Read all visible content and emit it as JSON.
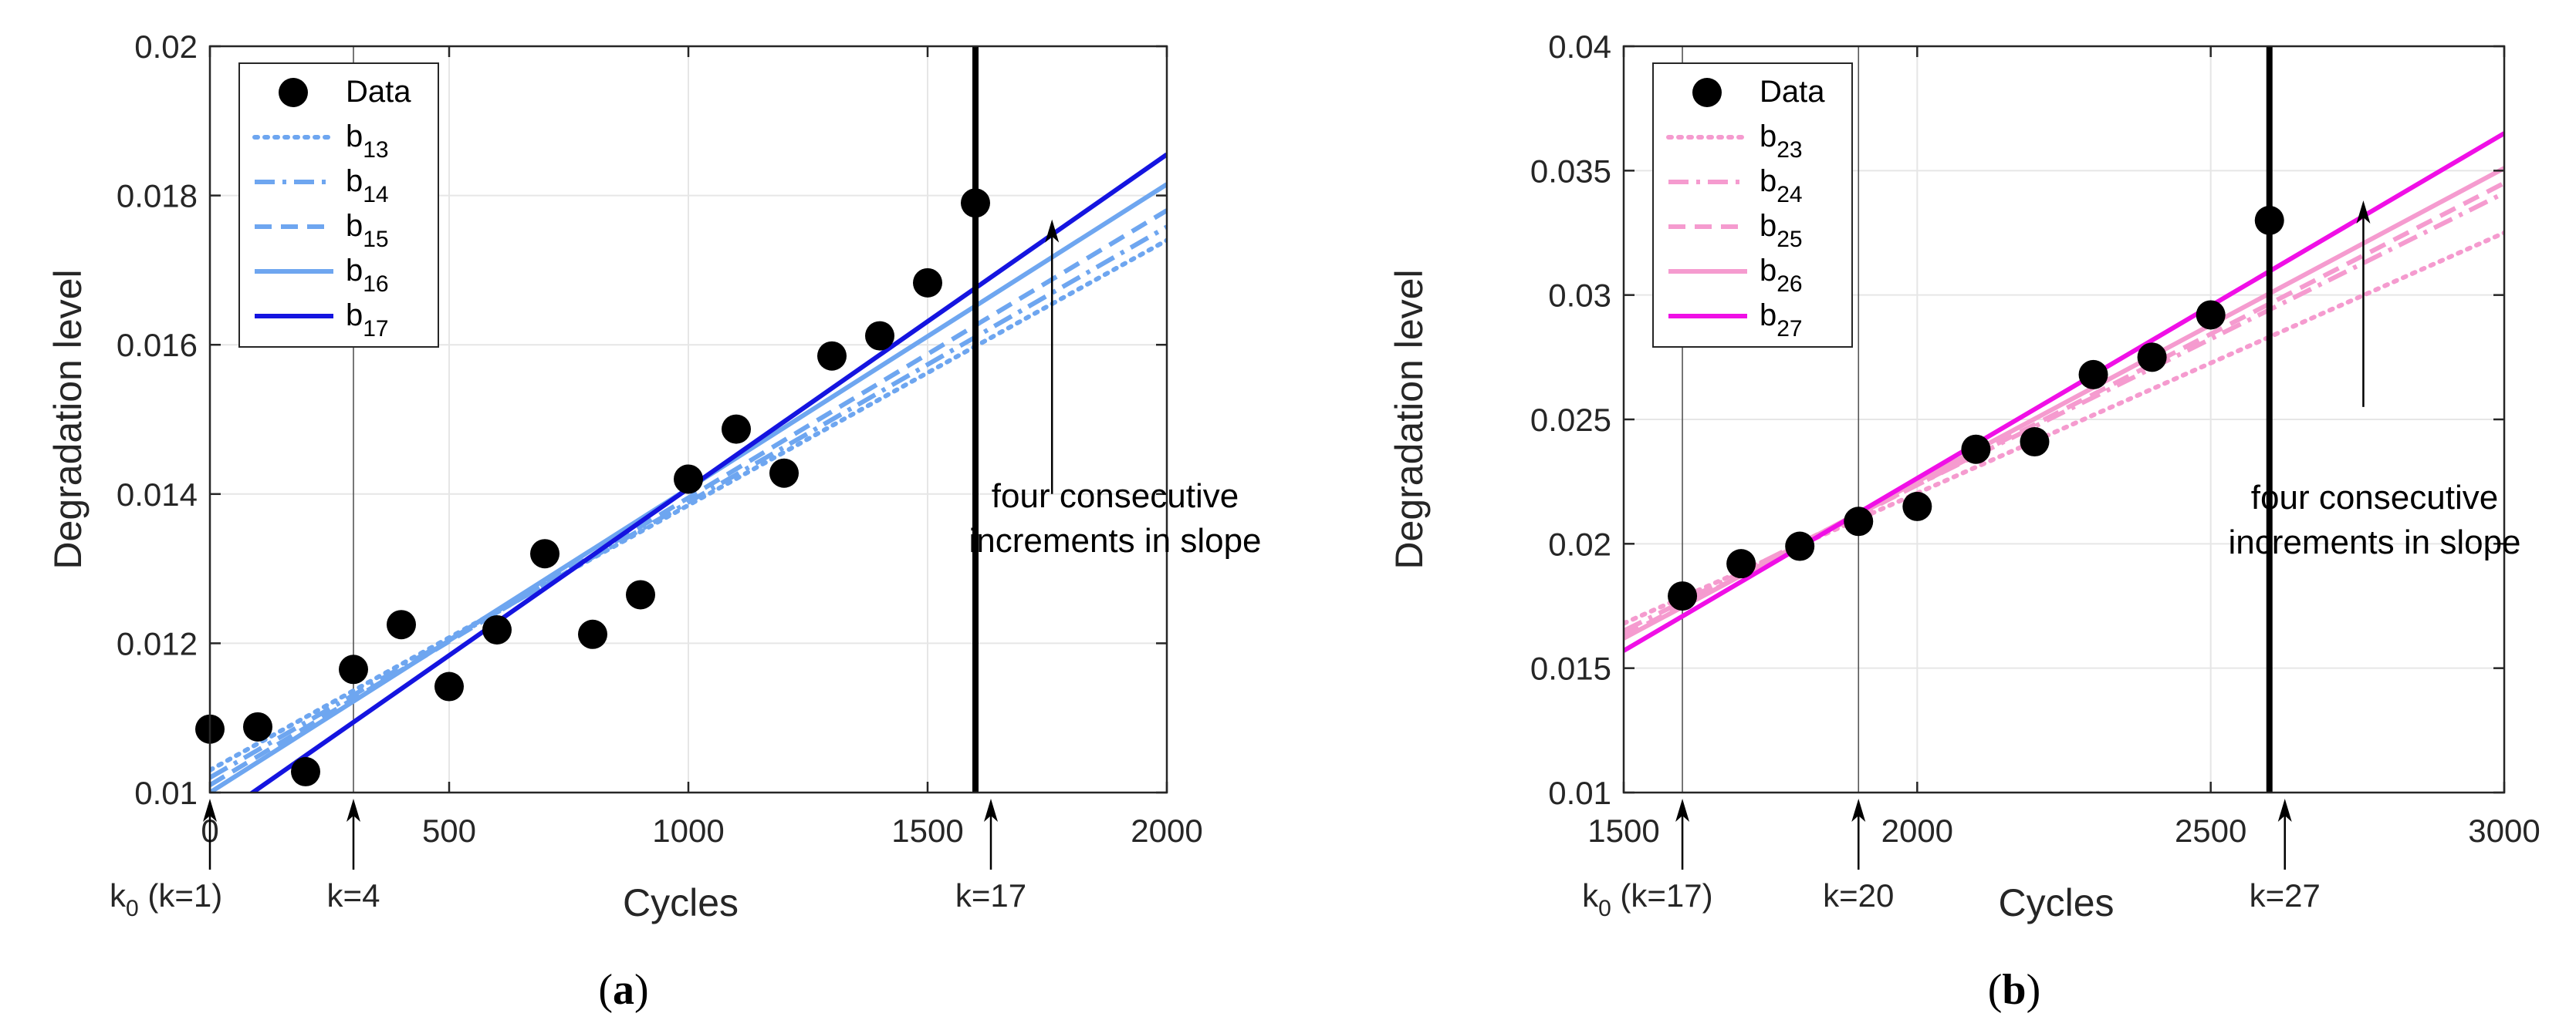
{
  "figure_labels": {
    "a": {
      "open": "(",
      "letter": "a",
      "close": ")"
    },
    "b": {
      "open": "(",
      "letter": "b",
      "close": ")"
    }
  },
  "colors": {
    "blue_light": "#6ea6f0",
    "blue_dark": "#1414e0",
    "pink_light": "#f59bcf",
    "pink_dark": "#f00fe6",
    "data": "#000000",
    "grid": "#e6e6e6"
  },
  "chart_data": [
    {
      "type": "line",
      "panel": "a",
      "title": "",
      "xlabel": "Cycles",
      "ylabel": "Degradation level",
      "xlim": [
        0,
        2000
      ],
      "ylim": [
        0.01,
        0.02
      ],
      "grid": true,
      "legend_position": "top-left",
      "x_ticks": [
        0,
        500,
        1000,
        1500,
        2000
      ],
      "x_tick_labels": [
        "0",
        "500",
        "1000",
        "1500",
        "2000"
      ],
      "y_ticks": [
        0.01,
        0.012,
        0.014,
        0.016,
        0.018,
        0.02
      ],
      "y_tick_labels": [
        "0.01",
        "0.012",
        "0.014",
        "0.016",
        "0.018",
        "0.02"
      ],
      "data_series": {
        "name": "Data",
        "x": [
          0,
          100,
          200,
          300,
          400,
          500,
          600,
          700,
          800,
          900,
          1000,
          1100,
          1200,
          1300,
          1400,
          1500,
          1600
        ],
        "y": [
          0.01085,
          0.01088,
          0.01028,
          0.01165,
          0.01225,
          0.01142,
          0.01218,
          0.0132,
          0.01212,
          0.01265,
          0.0142,
          0.01487,
          0.01428,
          0.01585,
          0.01612,
          0.01683,
          0.0179
        ]
      },
      "fit_lines": [
        {
          "base": "b",
          "sub": "13",
          "style": "dotted",
          "color": "#6ea6f0",
          "x": [
            0,
            2000
          ],
          "y": [
            0.0103,
            0.0174
          ]
        },
        {
          "base": "b",
          "sub": "14",
          "style": "dashdot",
          "color": "#6ea6f0",
          "x": [
            0,
            2000
          ],
          "y": [
            0.0102,
            0.01758
          ]
        },
        {
          "base": "b",
          "sub": "15",
          "style": "dashed",
          "color": "#6ea6f0",
          "x": [
            0,
            2000
          ],
          "y": [
            0.0101,
            0.0178
          ]
        },
        {
          "base": "b",
          "sub": "16",
          "style": "solid",
          "color": "#6ea6f0",
          "x": [
            0,
            2000
          ],
          "y": [
            0.01,
            0.01815
          ]
        },
        {
          "base": "b",
          "sub": "17",
          "style": "solid",
          "color": "#1414e0",
          "x": [
            0,
            2000
          ],
          "y": [
            0.0096,
            0.01855
          ]
        }
      ],
      "markers": [
        {
          "x": 0,
          "label": "k",
          "sub": "0",
          "suffix": " (k=1)",
          "thick": false,
          "arrow": true
        },
        {
          "x": 300,
          "label": "k=4",
          "sub": "",
          "suffix": "",
          "thick": false,
          "arrow": true
        },
        {
          "x": 1600,
          "label": "k=17",
          "sub": "",
          "suffix": "",
          "thick": true,
          "arrow": true
        }
      ],
      "annotation": {
        "lines": [
          "four consecutive",
          "increments in slope"
        ],
        "arrow_x": 1760,
        "arrow_y_from": 0.014,
        "arrow_y_to": 0.01768
      }
    },
    {
      "type": "line",
      "panel": "b",
      "title": "",
      "xlabel": "Cycles",
      "ylabel": "Degradation level",
      "xlim": [
        1500,
        3000
      ],
      "ylim": [
        0.01,
        0.04
      ],
      "grid": true,
      "legend_position": "top-left",
      "x_ticks": [
        1500,
        2000,
        2500,
        3000
      ],
      "x_tick_labels": [
        "1500",
        "2000",
        "2500",
        "3000"
      ],
      "y_ticks": [
        0.01,
        0.015,
        0.02,
        0.025,
        0.03,
        0.035,
        0.04
      ],
      "y_tick_labels": [
        "0.01",
        "0.015",
        "0.02",
        "0.025",
        "0.03",
        "0.035",
        "0.04"
      ],
      "data_series": {
        "name": "Data",
        "x": [
          1600,
          1700,
          1800,
          1900,
          2000,
          2100,
          2200,
          2300,
          2400,
          2500,
          2600
        ],
        "y": [
          0.0179,
          0.0192,
          0.0199,
          0.0209,
          0.0215,
          0.0238,
          0.0241,
          0.0268,
          0.0275,
          0.0292,
          0.033
        ]
      },
      "fit_lines": [
        {
          "base": "b",
          "sub": "23",
          "style": "dotted",
          "color": "#f59bcf",
          "x": [
            1500,
            3000
          ],
          "y": [
            0.0168,
            0.0325
          ]
        },
        {
          "base": "b",
          "sub": "24",
          "style": "dashdot",
          "color": "#f59bcf",
          "x": [
            1500,
            3000
          ],
          "y": [
            0.0165,
            0.0341
          ]
        },
        {
          "base": "b",
          "sub": "25",
          "style": "dashed",
          "color": "#f59bcf",
          "x": [
            1500,
            3000
          ],
          "y": [
            0.0163,
            0.0345
          ]
        },
        {
          "base": "b",
          "sub": "26",
          "style": "solid",
          "color": "#f59bcf",
          "x": [
            1500,
            3000
          ],
          "y": [
            0.0162,
            0.0351
          ]
        },
        {
          "base": "b",
          "sub": "27",
          "style": "solid",
          "color": "#f00fe6",
          "x": [
            1500,
            3000
          ],
          "y": [
            0.0157,
            0.0365
          ]
        }
      ],
      "markers": [
        {
          "x": 1600,
          "label": "k",
          "sub": "0",
          "suffix": " (k=17)",
          "thick": false,
          "arrow": true
        },
        {
          "x": 1900,
          "label": "k=20",
          "sub": "",
          "suffix": "",
          "thick": false,
          "arrow": true
        },
        {
          "x": 2600,
          "label": "k=27",
          "sub": "",
          "suffix": "",
          "thick": true,
          "arrow": true
        }
      ],
      "annotation": {
        "lines": [
          "four consecutive",
          "increments in slope"
        ],
        "arrow_x": 2760,
        "arrow_y_from": 0.0255,
        "arrow_y_to": 0.0338
      }
    }
  ]
}
